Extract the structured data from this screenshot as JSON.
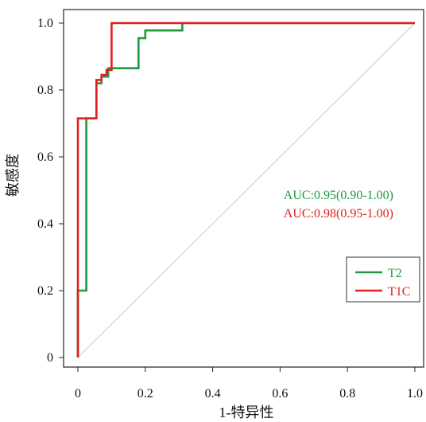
{
  "chart_data": {
    "type": "line",
    "title": "",
    "xlabel": "1-特异性",
    "ylabel": "敏感度",
    "xlim": [
      0,
      1
    ],
    "ylim": [
      0,
      1
    ],
    "x_ticks": [
      "0",
      "0.2",
      "0.4",
      "0.6",
      "0.8",
      "1.0"
    ],
    "y_ticks": [
      "0",
      "0.2",
      "0.4",
      "0.6",
      "0.8",
      "1.0"
    ],
    "grid": false,
    "legend_position": "bottom-right",
    "reference_line": true,
    "series": [
      {
        "name": "T2",
        "color": "#1f9a3f",
        "x": [
          0,
          0,
          0.025,
          0.025,
          0.055,
          0.055,
          0.07,
          0.07,
          0.09,
          0.09,
          0.105,
          0.105,
          0.18,
          0.18,
          0.2,
          0.2,
          0.31,
          0.31,
          1.0
        ],
        "y": [
          0,
          0.2,
          0.2,
          0.715,
          0.715,
          0.82,
          0.82,
          0.84,
          0.84,
          0.865,
          0.865,
          0.865,
          0.865,
          0.955,
          0.955,
          0.978,
          0.978,
          1.0,
          1.0
        ]
      },
      {
        "name": "T1C",
        "color": "#e02020",
        "x": [
          0,
          0,
          0.055,
          0.055,
          0.07,
          0.07,
          0.085,
          0.085,
          0.1,
          0.1,
          1.0
        ],
        "y": [
          0,
          0.715,
          0.715,
          0.83,
          0.83,
          0.845,
          0.845,
          0.86,
          0.86,
          1.0,
          1.0
        ]
      }
    ],
    "annotations": [
      {
        "text": "AUC:0.95(0.90-1.00)",
        "color": "#1f9a3f"
      },
      {
        "text": "AUC:0.98(0.95-1.00)",
        "color": "#e02020"
      }
    ]
  }
}
